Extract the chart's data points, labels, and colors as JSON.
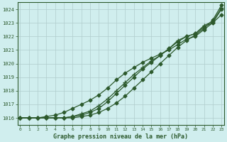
{
  "bg_color": "#d0eeee",
  "grid_color": "#b0cccc",
  "line_color": "#2d5a2d",
  "xlabel": "Graphe pression niveau de la mer (hPa)",
  "xlim": [
    0,
    23
  ],
  "ylim": [
    1015.5,
    1024.5
  ],
  "yticks": [
    1016,
    1017,
    1018,
    1019,
    1020,
    1021,
    1022,
    1023,
    1024
  ],
  "xticks": [
    0,
    1,
    2,
    3,
    4,
    5,
    6,
    7,
    8,
    9,
    10,
    11,
    12,
    13,
    14,
    15,
    16,
    17,
    18,
    19,
    20,
    21,
    22,
    23
  ],
  "series": [
    [
      1016.0,
      1016.0,
      1016.0,
      1016.0,
      1016.0,
      1016.0,
      1016.0,
      1016.1,
      1016.2,
      1016.4,
      1016.7,
      1017.1,
      1017.6,
      1018.2,
      1018.8,
      1019.4,
      1020.0,
      1020.6,
      1021.2,
      1021.7,
      1022.1,
      1022.6,
      1023.2,
      1024.3
    ],
    [
      1016.0,
      1016.0,
      1016.0,
      1016.0,
      1016.0,
      1016.0,
      1016.1,
      1016.2,
      1016.4,
      1016.7,
      1017.2,
      1017.8,
      1018.4,
      1019.0,
      1019.6,
      1020.1,
      1020.6,
      1021.1,
      1021.6,
      1022.0,
      1022.2,
      1022.7,
      1023.0,
      1024.0
    ],
    [
      1016.0,
      1016.0,
      1016.0,
      1016.0,
      1016.0,
      1016.0,
      1016.1,
      1016.3,
      1016.5,
      1016.9,
      1017.4,
      1018.0,
      1018.6,
      1019.2,
      1019.7,
      1020.2,
      1020.6,
      1021.1,
      1021.7,
      1022.0,
      1022.2,
      1022.8,
      1023.1,
      1024.1
    ],
    [
      1016.0,
      1016.0,
      1016.0,
      1016.1,
      1016.2,
      1016.4,
      1016.7,
      1017.0,
      1017.3,
      1017.7,
      1018.2,
      1018.8,
      1019.3,
      1019.7,
      1020.1,
      1020.4,
      1020.7,
      1021.0,
      1021.4,
      1021.8,
      1022.0,
      1022.5,
      1023.0,
      1023.6
    ]
  ]
}
